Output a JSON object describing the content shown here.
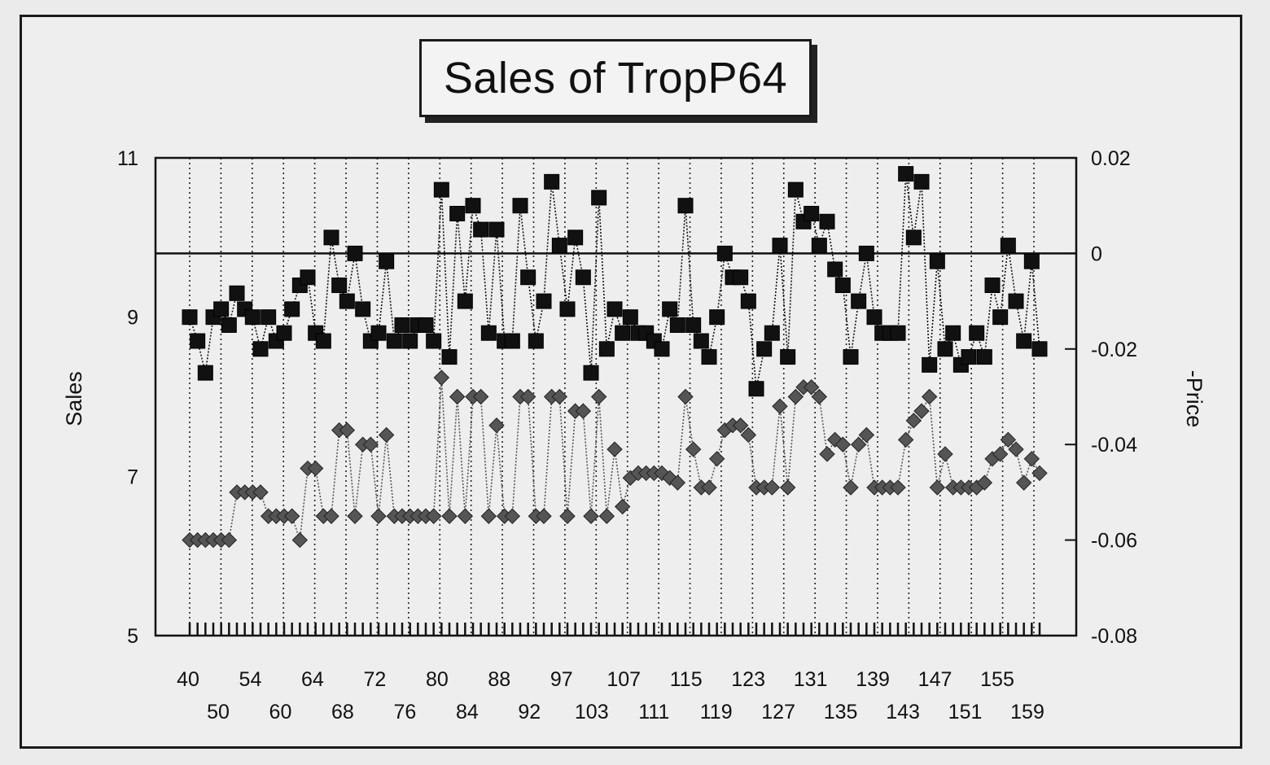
{
  "chart_data": {
    "type": "line",
    "title": "Sales of TropP64",
    "ylabel": "Sales",
    "y2label": "-Price",
    "ylim": [
      5,
      11
    ],
    "yticks": [
      5,
      7,
      9,
      11
    ],
    "y2lim": [
      -0.08,
      0.02
    ],
    "y2ticks": [
      -0.08,
      -0.06,
      -0.04,
      -0.02,
      0,
      0.02
    ],
    "y2tick_labels": [
      "-0.08",
      "-0.06",
      "-0.04",
      "-0.02",
      "0",
      "0.02"
    ],
    "grid": "vertical dotted lines",
    "reference_line": {
      "axis": "y2",
      "value": 0
    },
    "x_tick_labels_upper": [
      "40",
      "54",
      "64",
      "72",
      "80",
      "88",
      "97",
      "107",
      "115",
      "123",
      "131",
      "139",
      "147",
      "155"
    ],
    "x_tick_labels_lower": [
      "50",
      "60",
      "68",
      "76",
      "84",
      "92",
      "103",
      "111",
      "119",
      "127",
      "135",
      "143",
      "151",
      "159"
    ],
    "series": [
      {
        "marker": "square",
        "axis": "y",
        "color": "#111111",
        "values": [
          9.0,
          8.7,
          8.3,
          9.0,
          9.1,
          8.9,
          9.3,
          9.1,
          9.0,
          8.6,
          9.0,
          8.7,
          8.8,
          9.1,
          9.4,
          9.5,
          8.8,
          8.7,
          10.0,
          9.4,
          9.2,
          9.8,
          9.1,
          8.7,
          8.8,
          9.7,
          8.7,
          8.9,
          8.7,
          8.9,
          8.9,
          8.7,
          10.6,
          8.5,
          10.3,
          9.2,
          10.4,
          10.1,
          8.8,
          10.1,
          8.7,
          8.7,
          10.4,
          9.5,
          8.7,
          9.2,
          10.7,
          9.9,
          9.1,
          10.0,
          9.5,
          8.3,
          10.5,
          8.6,
          9.1,
          8.8,
          9.0,
          8.8,
          8.8,
          8.7,
          8.6,
          9.1,
          8.9,
          10.4,
          8.9,
          8.7,
          8.5,
          9.0,
          9.8,
          9.5,
          9.5,
          9.2,
          8.1,
          8.6,
          8.8,
          9.9,
          8.5,
          10.6,
          10.2,
          10.3,
          9.9,
          10.2,
          9.6,
          9.4,
          8.5,
          9.2,
          9.8,
          9.0,
          8.8,
          8.8,
          8.8,
          10.8,
          10.0,
          10.7,
          8.4,
          9.7,
          8.6,
          8.8,
          8.4,
          8.5,
          8.8,
          8.5,
          9.4,
          9.0,
          9.9,
          9.2,
          8.7,
          9.7,
          8.6
        ]
      },
      {
        "marker": "diamond",
        "axis": "y2",
        "color": "#555555",
        "values": [
          -0.06,
          -0.06,
          -0.06,
          -0.06,
          -0.06,
          -0.06,
          -0.05,
          -0.05,
          -0.05,
          -0.05,
          -0.055,
          -0.055,
          -0.055,
          -0.055,
          -0.06,
          -0.045,
          -0.045,
          -0.055,
          -0.055,
          -0.037,
          -0.037,
          -0.055,
          -0.04,
          -0.04,
          -0.055,
          -0.038,
          -0.055,
          -0.055,
          -0.055,
          -0.055,
          -0.055,
          -0.055,
          -0.026,
          -0.055,
          -0.03,
          -0.055,
          -0.03,
          -0.03,
          -0.055,
          -0.036,
          -0.055,
          -0.055,
          -0.03,
          -0.03,
          -0.055,
          -0.055,
          -0.03,
          -0.03,
          -0.055,
          -0.033,
          -0.033,
          -0.055,
          -0.03,
          -0.055,
          -0.041,
          -0.053,
          -0.047,
          -0.046,
          -0.046,
          -0.046,
          -0.046,
          -0.047,
          -0.048,
          -0.03,
          -0.041,
          -0.049,
          -0.049,
          -0.043,
          -0.037,
          -0.036,
          -0.036,
          -0.038,
          -0.049,
          -0.049,
          -0.049,
          -0.032,
          -0.049,
          -0.03,
          -0.028,
          -0.028,
          -0.03,
          -0.042,
          -0.039,
          -0.04,
          -0.049,
          -0.04,
          -0.038,
          -0.049,
          -0.049,
          -0.049,
          -0.049,
          -0.039,
          -0.035,
          -0.033,
          -0.03,
          -0.049,
          -0.042,
          -0.049,
          -0.049,
          -0.049,
          -0.049,
          -0.048,
          -0.043,
          -0.042,
          -0.039,
          -0.041,
          -0.048,
          -0.043,
          -0.046
        ]
      }
    ]
  }
}
